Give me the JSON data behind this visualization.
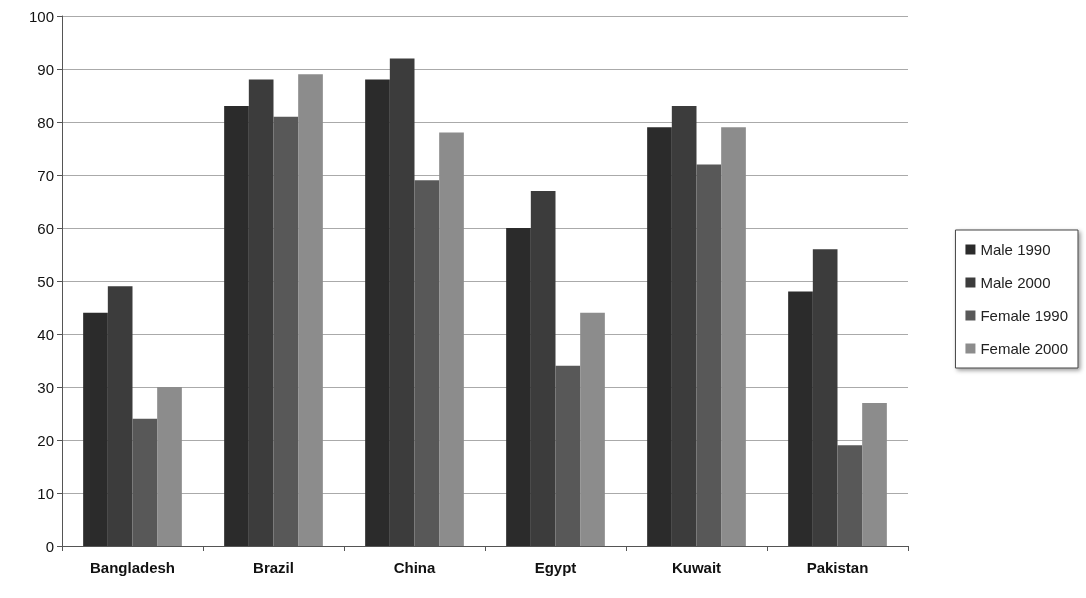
{
  "chart_data": {
    "type": "bar",
    "categories": [
      "Bangladesh",
      "Brazil",
      "China",
      "Egypt",
      "Kuwait",
      "Pakistan"
    ],
    "series": [
      {
        "name": "Male 1990",
        "color": "#2b2b2b",
        "values": [
          44,
          83,
          88,
          60,
          79,
          48
        ]
      },
      {
        "name": "Male 2000",
        "color": "#3c3c3c",
        "values": [
          49,
          88,
          92,
          67,
          83,
          56
        ]
      },
      {
        "name": "Female 1990",
        "color": "#585858",
        "values": [
          24,
          81,
          69,
          34,
          72,
          19
        ]
      },
      {
        "name": "Female 2000",
        "color": "#8c8c8c",
        "values": [
          30,
          89,
          78,
          44,
          79,
          27
        ]
      }
    ],
    "ylim": [
      0,
      100
    ],
    "yticks": [
      0,
      10,
      20,
      30,
      40,
      50,
      60,
      70,
      80,
      90,
      100
    ],
    "grid": "y",
    "legend": "right"
  }
}
